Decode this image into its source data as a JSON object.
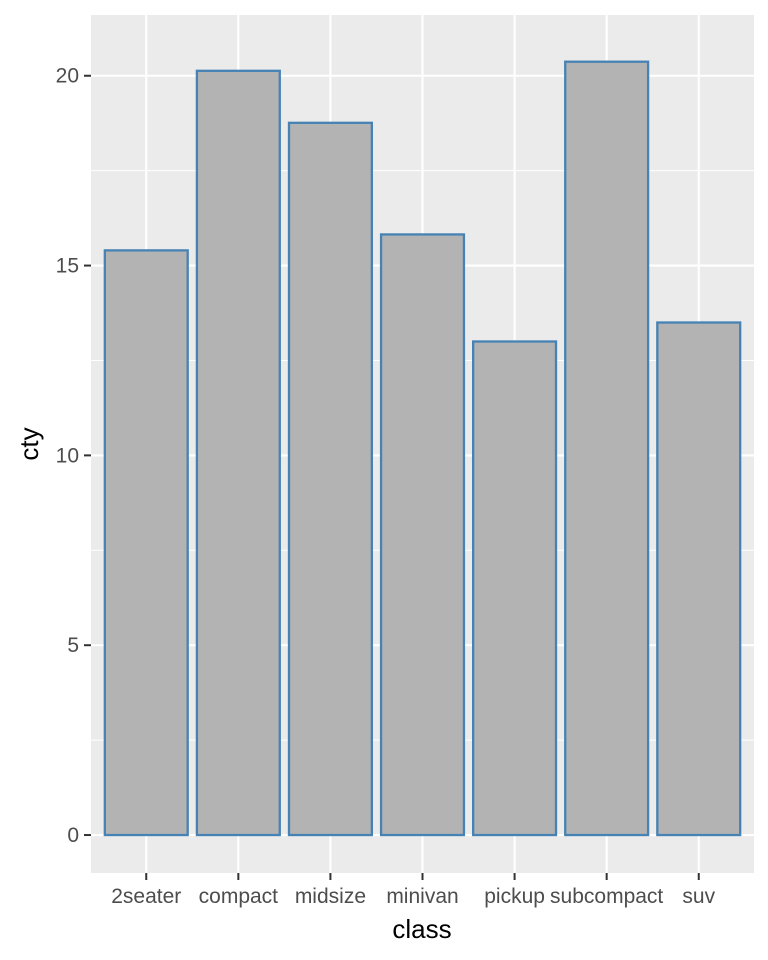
{
  "chart_data": {
    "type": "bar",
    "title": "",
    "xlabel": "class",
    "ylabel": "cty",
    "categories": [
      "2seater",
      "compact",
      "midsize",
      "minivan",
      "pickup",
      "subcompact",
      "suv"
    ],
    "values": [
      15.4,
      20.13,
      18.76,
      15.82,
      13.0,
      20.37,
      13.5
    ],
    "ylim": [
      -1,
      21.6
    ],
    "yticks": [
      0,
      5,
      10,
      15,
      20
    ],
    "grid": true,
    "legend": "none",
    "colors": {
      "panel": "#EBEBEB",
      "bar_fill": "#B3B3B3",
      "bar_outline": "#4682B4",
      "grid": "#FFFFFF",
      "tick_text": "#4D4D4D",
      "axis_title": "#000000"
    }
  }
}
